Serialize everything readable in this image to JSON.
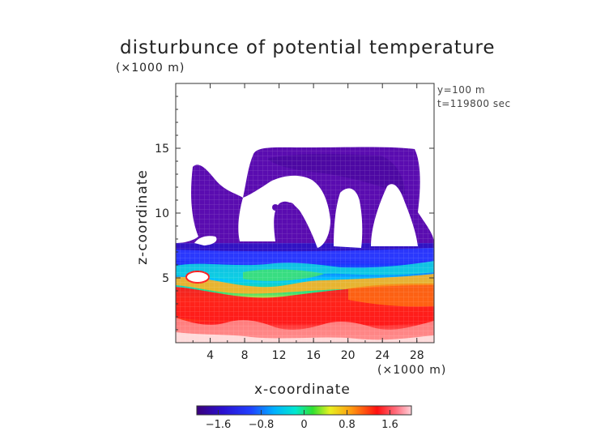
{
  "chart_data": {
    "type": "heatmap",
    "title": "disturbunce of potential temperature",
    "x_unit": "(×1000 m)",
    "z_unit": "(×1000 m)",
    "xlabel": "x-coordinate",
    "ylabel": "z-coordinate",
    "annotations": [
      "y=100 m",
      "t=119800 sec"
    ],
    "xlim": [
      0,
      30
    ],
    "ylim": [
      0,
      20
    ],
    "x_ticks": [
      "4",
      "8",
      "12",
      "16",
      "20",
      "24",
      "28"
    ],
    "y_ticks": [
      "5",
      "10",
      "15"
    ],
    "colorbar": {
      "range": [
        -2.0,
        2.0
      ],
      "tick_labels": [
        "−1.6",
        "−0.8",
        "0",
        "0.8",
        "1.6"
      ],
      "tick_values": [
        -1.6,
        -0.8,
        0,
        0.8,
        1.6
      ]
    },
    "colors": {
      "deep_purple": "#6a0dad",
      "blue": "#2020ff",
      "cyan": "#00e0e0",
      "green": "#30d040",
      "yellow": "#f0f020",
      "orange": "#ff9020",
      "red": "#ff1010",
      "pink": "#ffb0b0"
    },
    "grid": true
  }
}
